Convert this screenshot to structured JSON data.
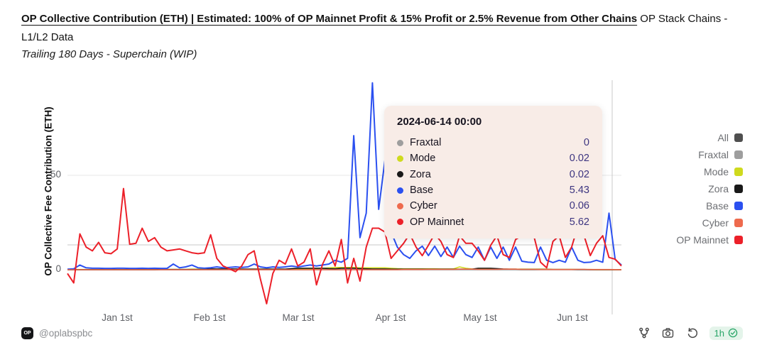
{
  "header": {
    "title_underlined": "OP Collective Contribution (ETH) | Estimated: 100% of OP Mainnet Profit & 15% Profit or 2.5% Revenue from Other Chains",
    "title_rest": "  OP Stack Chains - L1/L2 Data",
    "subtitle": "Trailing 180 Days - Superchain (WIP)"
  },
  "chart_data": {
    "type": "line",
    "title": "OP Collective Contribution (ETH)",
    "ylabel": "OP Collective Fee Contribution (ETH)",
    "xlabel": "",
    "ylim": [
      -22,
      102
    ],
    "grid": "horizontal-only",
    "legend_position": "right",
    "x_start": "2023-12-17",
    "x_step_days": 2,
    "n_points": 90,
    "x_tick_labels": [
      "Jan 1st",
      "Feb 1st",
      "Mar 1st",
      "Apr 1st",
      "May 1st",
      "Jun 1st"
    ],
    "y_ticks": [
      {
        "label": "50",
        "value": 50
      },
      {
        "label": "0",
        "value": 0
      }
    ],
    "crosshair": {
      "date": "2024-06-14"
    },
    "legend": [
      {
        "label": "All",
        "color": "#4f4f4f",
        "active": false
      },
      {
        "label": "Fraxtal",
        "color": "#9e9e9e",
        "active": true
      },
      {
        "label": "Mode",
        "color": "#cfda1e",
        "active": true
      },
      {
        "label": "Zora",
        "color": "#191919",
        "active": true
      },
      {
        "label": "Base",
        "color": "#2b50f0",
        "active": true
      },
      {
        "label": "Cyber",
        "color": "#ee6a4d",
        "active": true
      },
      {
        "label": "OP Mainnet",
        "color": "#ec2029",
        "active": true
      }
    ],
    "series": [
      {
        "name": "Fraxtal",
        "color": "#9e9e9e",
        "width": 1.8,
        "values": [
          0,
          0,
          0,
          0,
          0,
          0,
          0,
          0,
          0,
          0,
          0,
          0,
          0,
          0,
          0,
          0,
          0,
          0,
          0,
          0,
          0,
          0,
          0.05,
          0.05,
          0.05,
          0.05,
          0.05,
          0.05,
          0.05,
          0.05,
          0.05,
          0.05,
          0.05,
          0.05,
          0.05,
          0.05,
          0.05,
          0.05,
          0.05,
          0.05,
          0.05,
          0.05,
          0.05,
          0.05,
          0.05,
          0.05,
          0.05,
          0.05,
          0.05,
          0.05,
          0.05,
          0.05,
          0.05,
          0.05,
          0.05,
          0.05,
          0.05,
          0.05,
          0.05,
          0.05,
          0.05,
          0.05,
          0.05,
          0.05,
          0.05,
          0.05,
          0.05,
          0.05,
          0.05,
          0.05,
          0.05,
          0.05,
          0.05,
          0.05,
          0.05,
          0.05,
          0.05,
          0.05,
          0.05,
          0.05,
          0.05,
          0.05,
          0.05,
          0.05,
          0.05,
          0.02,
          0,
          0,
          0,
          0
        ]
      },
      {
        "name": "Mode",
        "color": "#cfda1e",
        "width": 1.6,
        "values": [
          0.1,
          0.1,
          0.1,
          0.1,
          0.1,
          0.1,
          0.1,
          0.1,
          0.1,
          0.1,
          0.2,
          0.2,
          0.2,
          0.2,
          0.2,
          0.2,
          0.2,
          0.2,
          0.2,
          0.2,
          0.3,
          0.3,
          0.3,
          0.3,
          0.3,
          0.3,
          0.3,
          0.3,
          0.3,
          0.3,
          0.3,
          0.3,
          0.3,
          0.3,
          0.3,
          0.3,
          0.4,
          0.4,
          0.5,
          0.5,
          0.6,
          0.8,
          1,
          1.2,
          1.2,
          1.2,
          1.2,
          1,
          1,
          1,
          1,
          1,
          0.8,
          0.6,
          0.5,
          0.5,
          0.5,
          0.5,
          0.5,
          0.5,
          0.4,
          0.4,
          0.4,
          1.5,
          0.8,
          0.4,
          0.4,
          0.4,
          0.4,
          0.3,
          0.3,
          0.3,
          0.3,
          0.3,
          0.3,
          0.3,
          0.3,
          0.3,
          0.2,
          0.2,
          0.2,
          0.2,
          0.1,
          0.1,
          0.1,
          0.05,
          0.02,
          0.02,
          0.02,
          0.02
        ]
      },
      {
        "name": "Zora",
        "color": "#191919",
        "width": 1.6,
        "values": [
          0.05,
          0.05,
          0.05,
          0.05,
          0.05,
          0.05,
          0.05,
          0.05,
          0.05,
          0.05,
          0.05,
          0.05,
          0.05,
          0.05,
          0.05,
          0.1,
          0.1,
          0.1,
          0.1,
          0.1,
          0.1,
          0.1,
          0.1,
          0.4,
          0.4,
          0.4,
          0.4,
          0.4,
          0.3,
          0.3,
          0.3,
          0.3,
          0.3,
          0.3,
          0.3,
          0.3,
          0.6,
          0.8,
          0.8,
          0.8,
          0.8,
          0.8,
          0.6,
          0.5,
          0.8,
          0.8,
          0.8,
          0.6,
          0.5,
          0.4,
          0.4,
          0.4,
          0.3,
          0.3,
          0.3,
          0.3,
          0.3,
          0.3,
          0.3,
          0.3,
          0.3,
          0.3,
          0.3,
          0.3,
          0.3,
          0.3,
          0.8,
          0.8,
          0.8,
          0.6,
          0.4,
          0.3,
          0.3,
          0.2,
          0.2,
          0.2,
          0.2,
          0.2,
          0.1,
          0.1,
          0.1,
          0.1,
          0.1,
          0.1,
          0.05,
          0.05,
          0.02,
          0.02,
          0.02,
          0.02
        ]
      },
      {
        "name": "Base",
        "color": "#2b50f0",
        "width": 2,
        "values": [
          0.3,
          0.5,
          2.5,
          1,
          0.8,
          0.8,
          0.7,
          0.7,
          0.8,
          0.8,
          0.7,
          0.7,
          0.8,
          0.7,
          0.8,
          0.7,
          0.7,
          3,
          1,
          1.5,
          2.5,
          1,
          0.8,
          1,
          1.5,
          1,
          1.2,
          1.5,
          1.2,
          1.5,
          3,
          1.5,
          1,
          1.5,
          1.2,
          1.5,
          2,
          1.5,
          2,
          2.5,
          2,
          2.5,
          3,
          5,
          4,
          6,
          71,
          17,
          30,
          99,
          32,
          58,
          20,
          12,
          8,
          6,
          10,
          12.5,
          7.5,
          12.5,
          7,
          12,
          6.5,
          12.5,
          8,
          6.5,
          12,
          5,
          12,
          6,
          12,
          5,
          12,
          4.5,
          4,
          3.8,
          12,
          5,
          3.8,
          5,
          4,
          12,
          5,
          3.8,
          4,
          5,
          4,
          30,
          5.43,
          2.5
        ]
      },
      {
        "name": "Cyber",
        "color": "#ee6a4d",
        "width": 1.6,
        "values": [
          0,
          0,
          0,
          0,
          0,
          0,
          0,
          0,
          0,
          0,
          0,
          0,
          0,
          0,
          0,
          0,
          0,
          0,
          0,
          0,
          0,
          0,
          0,
          0,
          0,
          0,
          0,
          0,
          0,
          0,
          0,
          0,
          0,
          0,
          0,
          0,
          0,
          0,
          0,
          0,
          0,
          0,
          0,
          0,
          0,
          0,
          0,
          0,
          0,
          0,
          0,
          0,
          0,
          0,
          0.1,
          0.1,
          0.1,
          0.1,
          0.2,
          0.2,
          0.2,
          0.2,
          0.2,
          0.3,
          0.3,
          0.3,
          0.2,
          0.2,
          0.2,
          0.2,
          0.3,
          0.3,
          0.3,
          0.2,
          0.2,
          0.2,
          0.1,
          0.1,
          0.1,
          0.1,
          0.1,
          0.1,
          0.2,
          0.2,
          0.1,
          0.1,
          0.1,
          0.1,
          0.06,
          0.05
        ]
      },
      {
        "name": "OP Mainnet",
        "color": "#ec2029",
        "width": 2,
        "values": [
          -2,
          -7,
          19,
          12,
          10,
          14.5,
          9,
          8.5,
          11,
          43,
          13.5,
          14,
          22,
          15,
          17,
          12,
          10,
          10.5,
          11,
          10,
          9,
          8.5,
          9,
          18.5,
          6,
          2,
          0.5,
          -1,
          2,
          8,
          10,
          -5,
          -18,
          -2,
          5,
          3,
          11,
          2,
          4,
          11,
          -8,
          3,
          10,
          2,
          16,
          -7,
          6,
          -6,
          12,
          22,
          22,
          20,
          6,
          10,
          14,
          19,
          12,
          7.5,
          13,
          19,
          15,
          8,
          6.5,
          18,
          14,
          14,
          10,
          5,
          13,
          18,
          8,
          6.5,
          16,
          18,
          18,
          17,
          4,
          1,
          15,
          18,
          6.5,
          12,
          23,
          18,
          7.5,
          14,
          18,
          6.5,
          5.62,
          2
        ]
      }
    ]
  },
  "tooltip": {
    "title": "2024-06-14 00:00",
    "rows": [
      {
        "label": "Fraxtal",
        "value": "0",
        "color": "#9e9e9e"
      },
      {
        "label": "Mode",
        "value": "0.02",
        "color": "#cfda1e"
      },
      {
        "label": "Zora",
        "value": "0.02",
        "color": "#191919"
      },
      {
        "label": "Base",
        "value": "5.43",
        "color": "#2b50f0"
      },
      {
        "label": "Cyber",
        "value": "0.06",
        "color": "#ee6a4d"
      },
      {
        "label": "OP Mainnet",
        "value": "5.62",
        "color": "#ec2029"
      }
    ]
  },
  "footer": {
    "logo_text": "OP",
    "handle": "@oplabspbc",
    "updated_badge": "1h",
    "icons": [
      "fork-icon",
      "camera-icon",
      "refresh-icon",
      "verified-icon"
    ]
  },
  "colors": {
    "tooltip_bg": "#f8ece7",
    "tooltip_value": "#3d3580",
    "grid_line": "#e7e7e7",
    "zero_line": "#bdbdbd",
    "crosshair": "#c9c9c9",
    "badge_green": "#27a567",
    "badge_bg": "#e4f4ea"
  }
}
